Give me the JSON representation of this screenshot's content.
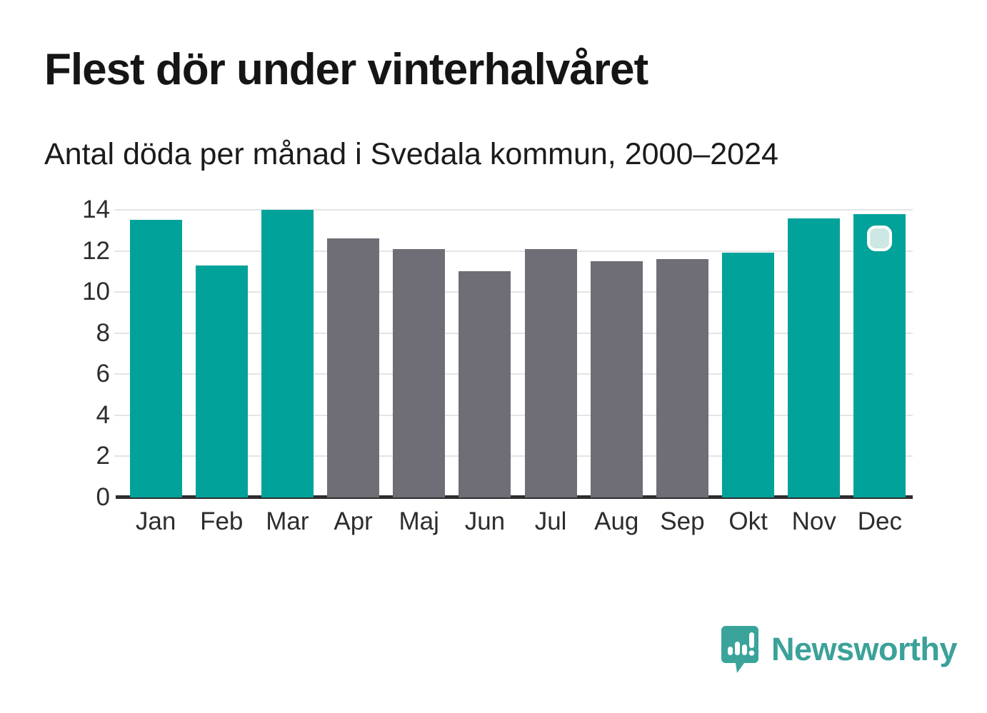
{
  "title": "Flest dör under vinterhalvåret",
  "subtitle": "Antal döda per månad i Svedala kommun, 2000–2024",
  "chart_data": {
    "type": "bar",
    "categories": [
      "Jan",
      "Feb",
      "Mar",
      "Apr",
      "Maj",
      "Jun",
      "Jul",
      "Aug",
      "Sep",
      "Okt",
      "Nov",
      "Dec"
    ],
    "values": [
      13.5,
      11.3,
      14.0,
      12.6,
      12.1,
      11.0,
      12.1,
      11.5,
      11.6,
      11.9,
      13.6,
      13.8
    ],
    "bar_groups": [
      "vinter",
      "vinter",
      "vinter",
      "sommar",
      "sommar",
      "sommar",
      "sommar",
      "sommar",
      "sommar",
      "vinter",
      "vinter",
      "vinter"
    ],
    "colors": {
      "vinter": "#00a29a",
      "sommar": "#6f6e76"
    },
    "title": "Flest dör under vinterhalvåret",
    "subtitle": "Antal döda per månad i Svedala kommun, 2000–2024",
    "xlabel": "",
    "ylabel": "",
    "ylim": [
      0,
      14
    ],
    "yticks": [
      0,
      2,
      4,
      6,
      8,
      10,
      12,
      14
    ],
    "grid": true,
    "legend": "none"
  },
  "overlay": {
    "marker_month": "Dec"
  },
  "branding": {
    "logo_text": "Newsworthy",
    "logo_color": "#3ba199"
  }
}
